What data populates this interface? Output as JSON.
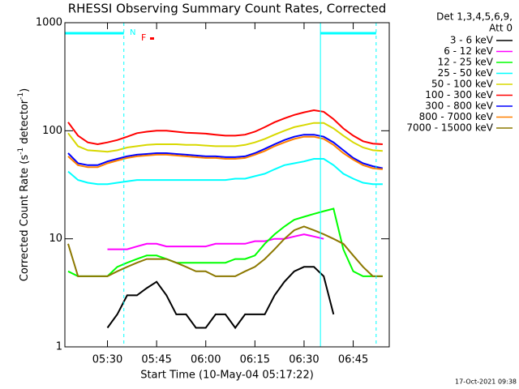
{
  "chart_data": {
    "type": "line",
    "title": "RHESSI Observing Summary Count Rates, Corrected",
    "xlabel": "Start Time (10-May-04 05:17:22)",
    "ylabel_parts": [
      "Corrected Count Rate (s",
      "-1",
      " detector",
      "-1",
      ")"
    ],
    "legend_header": [
      "Det 1,3,4,5,6,9,",
      "Att 0"
    ],
    "footer": "17-Oct-2021 09:38",
    "annotations": {
      "night": "N",
      "flare": "F"
    },
    "log_y": true,
    "xlim": [
      "05:17",
      "06:56"
    ],
    "ylim": [
      1,
      1000
    ],
    "xticks": [
      "05:30",
      "05:45",
      "06:00",
      "06:15",
      "06:30",
      "06:45"
    ],
    "yticks": [
      1,
      10,
      100,
      1000
    ],
    "solid_lines": [
      "05:17",
      "06:35"
    ],
    "dashed_lines": [
      "05:35",
      "06:52"
    ],
    "x": [
      "05:18",
      "05:21",
      "05:24",
      "05:27",
      "05:30",
      "05:33",
      "05:36",
      "05:39",
      "05:42",
      "05:45",
      "05:48",
      "05:51",
      "05:54",
      "05:57",
      "06:00",
      "06:03",
      "06:06",
      "06:09",
      "06:12",
      "06:15",
      "06:18",
      "06:21",
      "06:24",
      "06:27",
      "06:30",
      "06:33",
      "06:36",
      "06:39",
      "06:42",
      "06:45",
      "06:48",
      "06:51",
      "06:54"
    ],
    "series": [
      {
        "name": "3 - 6 keV",
        "color": "#000000",
        "values": [
          null,
          null,
          null,
          null,
          1.5,
          2,
          3,
          3,
          3.5,
          4,
          3,
          2,
          2,
          1.5,
          1.5,
          2,
          2,
          1.5,
          2,
          2,
          2,
          3,
          4,
          5,
          5.5,
          5.5,
          4.5,
          2,
          null,
          null,
          null,
          null,
          null
        ]
      },
      {
        "name": "6 - 12 keV",
        "color": "#ff00ff",
        "values": [
          null,
          null,
          null,
          null,
          8,
          8,
          8,
          8.5,
          9,
          9,
          8.5,
          8.5,
          8.5,
          8.5,
          8.5,
          9,
          9,
          9,
          9,
          9.5,
          9.5,
          10,
          10,
          10.5,
          11,
          10.5,
          10,
          null,
          null,
          null,
          null,
          null,
          null
        ]
      },
      {
        "name": "12 - 25 keV",
        "color": "#00ff00",
        "values": [
          5,
          4.5,
          4.5,
          4.5,
          4.5,
          5.5,
          6,
          6.5,
          7,
          7,
          6.5,
          6,
          6,
          6,
          6,
          6,
          6,
          6.5,
          6.5,
          7,
          9,
          11,
          13,
          15,
          16,
          17,
          18,
          19,
          8,
          5,
          4.5,
          4.5,
          4.5
        ]
      },
      {
        "name": "25 - 50 keV",
        "color": "#00ffff",
        "values": [
          42,
          35,
          33,
          32,
          32,
          33,
          34,
          35,
          35,
          35,
          35,
          35,
          35,
          35,
          35,
          35,
          35,
          36,
          36,
          38,
          40,
          44,
          48,
          50,
          52,
          55,
          55,
          48,
          40,
          36,
          33,
          32,
          32
        ]
      },
      {
        "name": "50 - 100 keV",
        "color": "#d8d800",
        "values": [
          95,
          72,
          66,
          65,
          64,
          66,
          70,
          72,
          74,
          75,
          75,
          75,
          74,
          74,
          73,
          72,
          72,
          72,
          74,
          78,
          84,
          92,
          100,
          108,
          113,
          118,
          118,
          105,
          90,
          78,
          70,
          66,
          65
        ]
      },
      {
        "name": "100 - 300 keV",
        "color": "#ff0000",
        "values": [
          120,
          90,
          78,
          75,
          78,
          82,
          88,
          95,
          98,
          100,
          100,
          98,
          96,
          95,
          94,
          92,
          90,
          90,
          92,
          98,
          108,
          120,
          130,
          140,
          148,
          155,
          150,
          128,
          105,
          90,
          80,
          76,
          75
        ]
      },
      {
        "name": "300 - 800 keV",
        "color": "#0000ff",
        "values": [
          62,
          50,
          48,
          48,
          52,
          55,
          58,
          60,
          61,
          62,
          62,
          61,
          60,
          59,
          58,
          58,
          57,
          57,
          58,
          62,
          68,
          75,
          82,
          88,
          92,
          92,
          88,
          78,
          66,
          56,
          50,
          47,
          45
        ]
      },
      {
        "name": "800 - 7000 keV",
        "color": "#ff8000",
        "values": [
          58,
          48,
          46,
          46,
          50,
          53,
          56,
          58,
          59,
          60,
          60,
          59,
          58,
          57,
          56,
          56,
          55,
          55,
          56,
          60,
          65,
          72,
          78,
          84,
          88,
          88,
          84,
          74,
          62,
          54,
          48,
          45,
          44
        ]
      },
      {
        "name": "7000 - 15000 keV",
        "color": "#8c7800",
        "values": [
          9,
          4.5,
          4.5,
          4.5,
          4.5,
          5,
          5.5,
          6,
          6.5,
          6.5,
          6.5,
          6,
          5.5,
          5,
          5,
          4.5,
          4.5,
          4.5,
          5,
          5.5,
          6.5,
          8,
          10,
          12,
          13,
          12,
          11,
          10,
          9,
          7,
          5.5,
          4.5,
          4.5
        ]
      }
    ]
  }
}
